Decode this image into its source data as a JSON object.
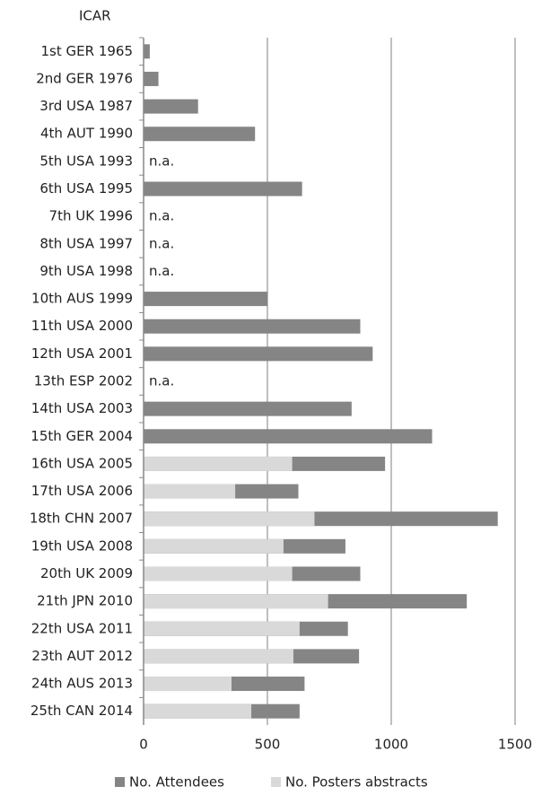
{
  "chart_data": {
    "type": "hbar_overlap",
    "axis_title": "ICAR",
    "categories": [
      "1st GER 1965",
      "2nd GER 1976",
      "3rd USA 1987",
      "4th AUT 1990",
      "5th USA 1993",
      "6th USA 1995",
      "7th UK 1996",
      "8th USA 1997",
      "9th USA 1998",
      "10th AUS 1999",
      "11th USA 2000",
      "12th USA 2001",
      "13th ESP 2002",
      "14th USA 2003",
      "15th GER 2004",
      "16th USA 2005",
      "17th USA 2006",
      "18th CHN 2007",
      "19th USA 2008",
      "20th UK 2009",
      "21th JPN 2010",
      "22th USA 2011",
      "23th AUT 2012",
      "24th AUS 2013",
      "25th CAN 2014"
    ],
    "series": [
      {
        "name": "No. Attendees",
        "color": "#858585",
        "values": [
          25,
          60,
          220,
          450,
          null,
          640,
          null,
          null,
          null,
          500,
          875,
          925,
          null,
          840,
          1165,
          975,
          625,
          1430,
          815,
          875,
          1305,
          825,
          870,
          650,
          630
        ],
        "value_labels": [
          null,
          null,
          null,
          null,
          "n.a.",
          null,
          "n.a.",
          "n.a.",
          "n.a.",
          null,
          null,
          null,
          "n.a.",
          null,
          null,
          null,
          null,
          null,
          null,
          null,
          null,
          null,
          null,
          null,
          null
        ]
      },
      {
        "name": "No. Posters abstracts",
        "color": "#d9d9d9",
        "values": [
          null,
          null,
          null,
          null,
          null,
          null,
          null,
          null,
          null,
          null,
          null,
          null,
          null,
          null,
          null,
          600,
          370,
          690,
          565,
          600,
          745,
          630,
          605,
          355,
          435
        ]
      }
    ],
    "xlim": [
      0,
      1500
    ],
    "xticks": [
      0,
      500,
      1000,
      1500
    ],
    "grid": true
  }
}
